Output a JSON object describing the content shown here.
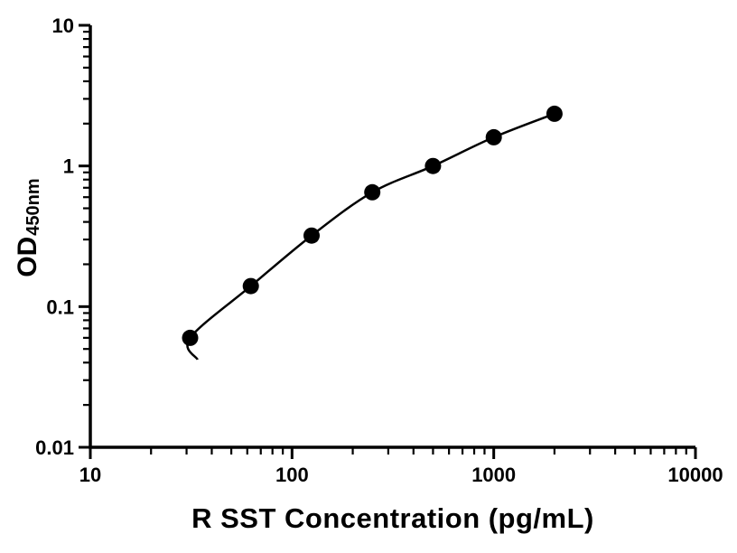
{
  "chart_data": {
    "type": "scatter",
    "title": "",
    "xlabel": "R SST Concentration (pg/mL)",
    "ylabel_main": "OD",
    "ylabel_sub": "450nm",
    "x_scale": "log",
    "y_scale": "log",
    "xlim": [
      10,
      10000
    ],
    "ylim": [
      0.01,
      10
    ],
    "x_ticks": [
      10,
      100,
      1000,
      10000
    ],
    "x_tick_labels": [
      "10",
      "100",
      "1000",
      "10000"
    ],
    "y_ticks": [
      0.01,
      0.1,
      1,
      10
    ],
    "y_tick_labels": [
      "0.01",
      "0.1",
      "1",
      "10"
    ],
    "points": [
      {
        "x": 31.25,
        "y": 0.06
      },
      {
        "x": 62.5,
        "y": 0.14
      },
      {
        "x": 125,
        "y": 0.32
      },
      {
        "x": 250,
        "y": 0.65
      },
      {
        "x": 500,
        "y": 1.0
      },
      {
        "x": 1000,
        "y": 1.6
      },
      {
        "x": 2000,
        "y": 2.35
      }
    ],
    "curve_tail": {
      "x": 34,
      "y": 0.042
    },
    "marker_color": "#000000",
    "line_color": "#000000",
    "axis_color": "#000000",
    "background": "#ffffff",
    "grid": false,
    "legend": false
  }
}
